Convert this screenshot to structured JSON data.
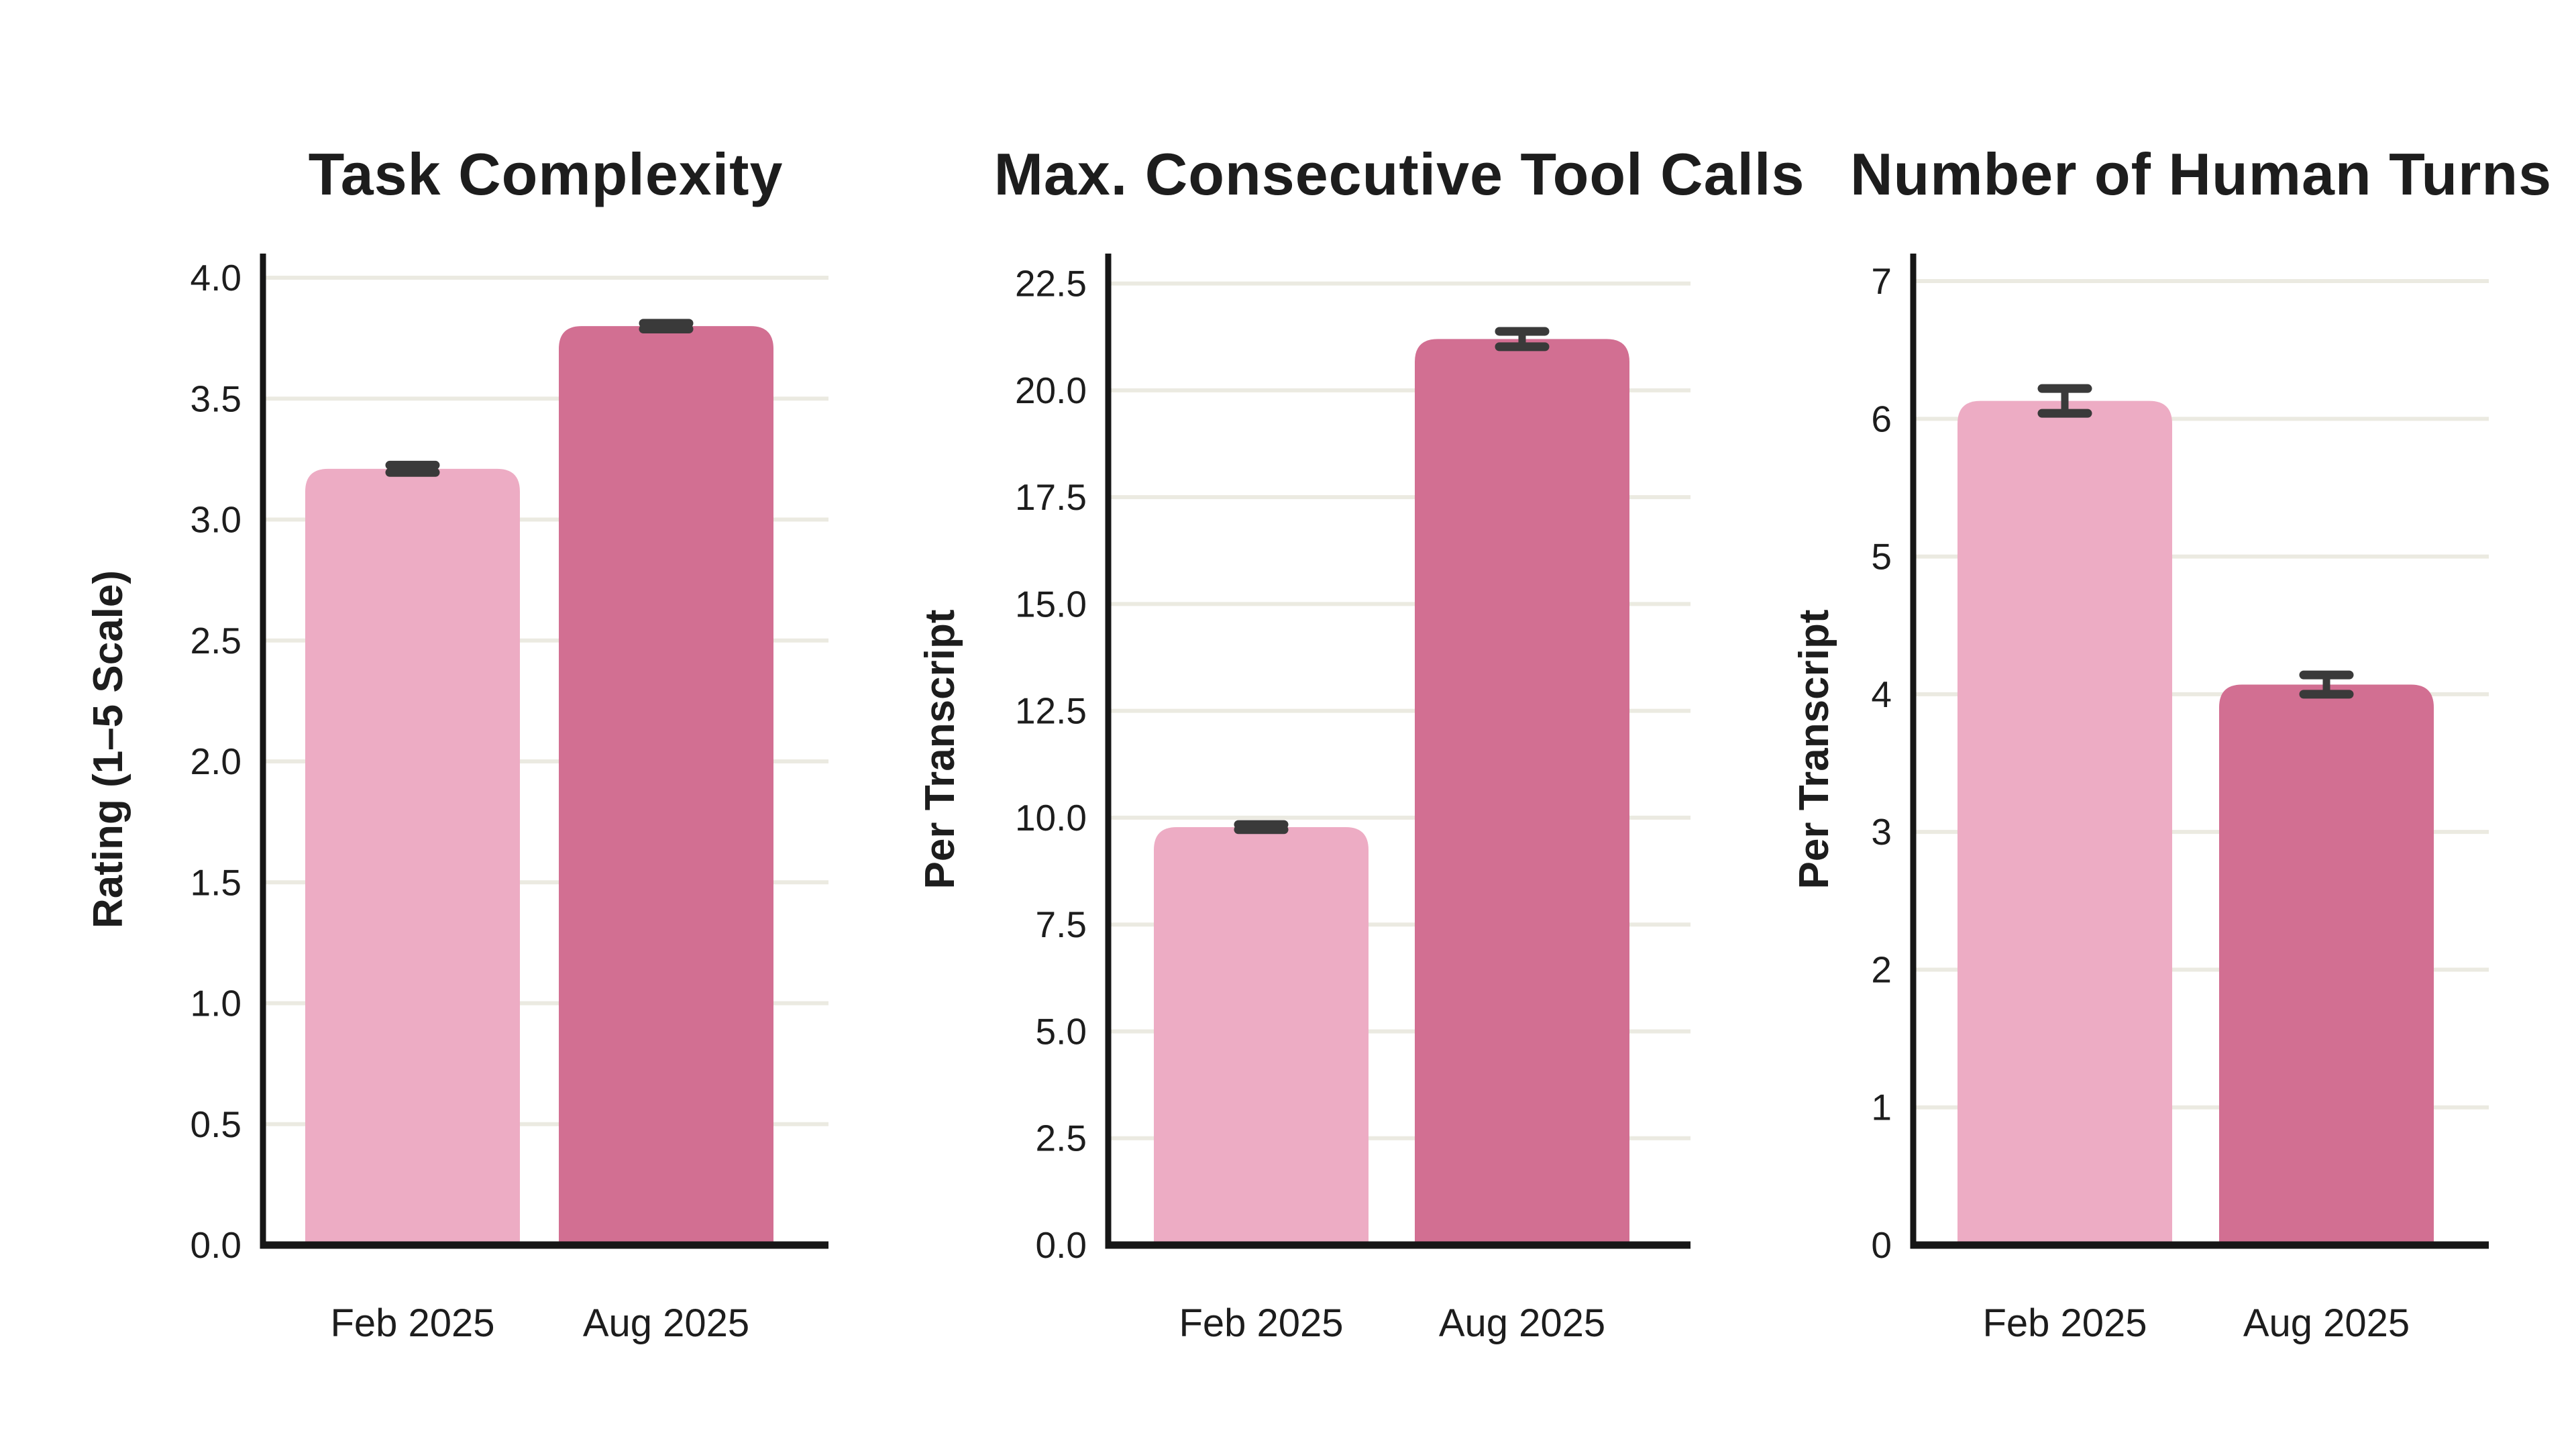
{
  "figure": {
    "background_color": "#ffffff",
    "text_color": "#1d1d1d",
    "spine_color": "#161616",
    "grid_color": "#ebeae1",
    "error_bar_color": "#3a3a3a",
    "series_colors": {
      "feb_2025": "#edacc4",
      "aug_2025": "#d26f92"
    }
  },
  "chart_data": [
    {
      "type": "bar",
      "title": "Task Complexity",
      "xlabel": "",
      "ylabel": "Rating (1–5 Scale)",
      "categories": [
        "Feb 2025",
        "Aug 2025"
      ],
      "values": [
        3.21,
        3.8
      ],
      "errors": [
        0.015,
        0.012
      ],
      "bar_colors": [
        "#edacc4",
        "#d26f92"
      ],
      "ylim": [
        0,
        4.1
      ],
      "ytick_values": [
        0,
        0.5,
        1,
        1.5,
        2,
        2.5,
        3,
        3.5,
        4
      ],
      "ytick_labels": [
        "0.0",
        "0.5",
        "1.0",
        "1.5",
        "2.0",
        "2.5",
        "3.0",
        "3.5",
        "4.0"
      ],
      "grid": true,
      "legend": null
    },
    {
      "type": "bar",
      "title": "Max. Consecutive Tool Calls",
      "xlabel": "",
      "ylabel": "Per Transcript",
      "categories": [
        "Feb 2025",
        "Aug 2025"
      ],
      "values": [
        9.78,
        21.2
      ],
      "errors": [
        0.06,
        0.18
      ],
      "bar_colors": [
        "#edacc4",
        "#d26f92"
      ],
      "ylim": [
        0,
        23.2
      ],
      "ytick_values": [
        0,
        2.5,
        5,
        7.5,
        10,
        12.5,
        15,
        17.5,
        20,
        22.5
      ],
      "ytick_labels": [
        "0.0",
        "2.5",
        "5.0",
        "7.5",
        "10.0",
        "12.5",
        "15.0",
        "17.5",
        "20.0",
        "22.5"
      ],
      "grid": true,
      "legend": null
    },
    {
      "type": "bar",
      "title": "Number of Human Turns",
      "xlabel": "",
      "ylabel": "Per Transcript",
      "categories": [
        "Feb 2025",
        "Aug 2025"
      ],
      "values": [
        6.13,
        4.07
      ],
      "errors": [
        0.09,
        0.07
      ],
      "bar_colors": [
        "#edacc4",
        "#d26f92"
      ],
      "ylim": [
        0,
        7.2
      ],
      "ytick_values": [
        0,
        1,
        2,
        3,
        4,
        5,
        6,
        7
      ],
      "ytick_labels": [
        "0",
        "1",
        "2",
        "3",
        "4",
        "5",
        "6",
        "7"
      ],
      "grid": true,
      "legend": null
    }
  ]
}
